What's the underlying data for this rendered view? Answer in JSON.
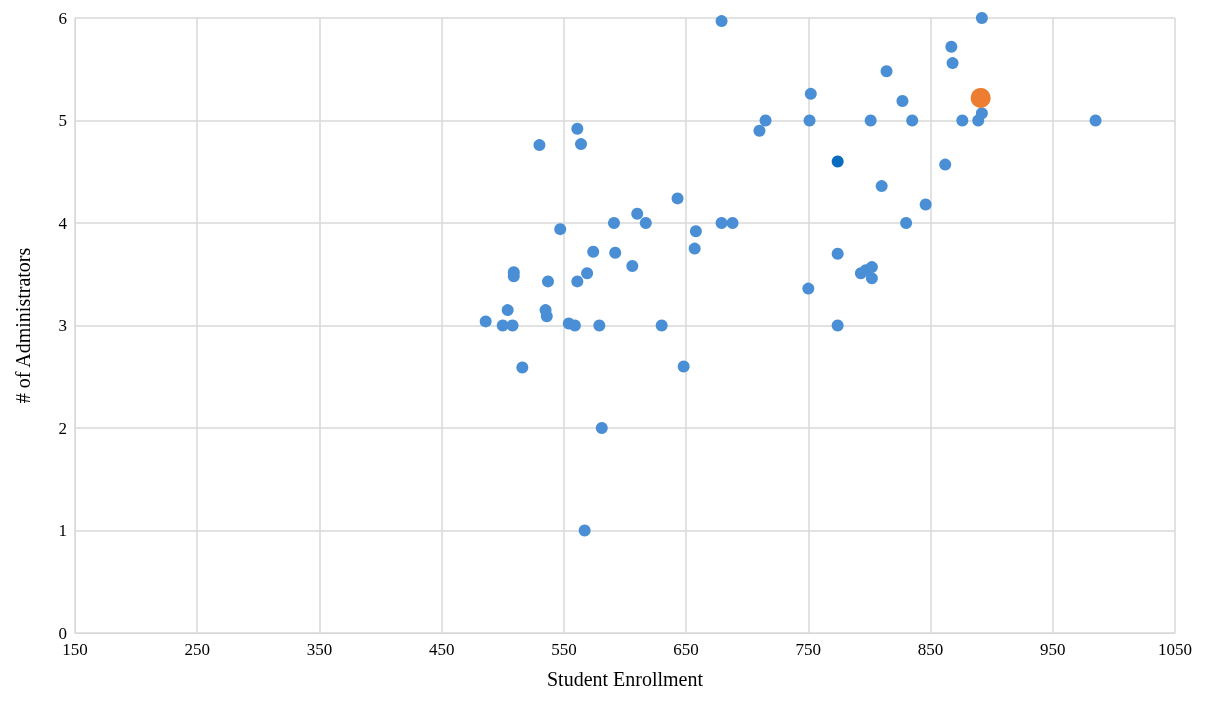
{
  "chart_data": {
    "type": "scatter",
    "xlabel": "Student Enrollment",
    "ylabel": "# of Administrators",
    "xlim": [
      150,
      1050
    ],
    "xticks": [
      150,
      250,
      350,
      450,
      550,
      650,
      750,
      850,
      950,
      1050
    ],
    "ylim": [
      0,
      6
    ],
    "yticks": [
      0,
      1,
      2,
      3,
      4,
      5,
      6
    ],
    "grid": true,
    "marker": "circle",
    "series": [
      {
        "color": "#4a8fd5",
        "x": [
          679,
          892,
          867,
          868,
          814,
          752,
          827,
          892,
          561,
          564,
          530,
          715,
          710,
          751,
          801,
          835,
          876,
          889,
          985,
          862,
          810,
          846,
          643,
          610,
          591,
          617,
          679,
          688,
          830,
          658,
          547,
          574,
          592,
          657,
          774,
          509,
          509,
          606,
          569,
          537,
          561,
          793,
          797,
          802,
          802,
          750,
          504,
          535,
          536,
          486,
          500,
          508,
          554,
          559,
          579,
          630,
          774,
          516,
          648,
          581,
          567
        ],
        "values": [
          5.97,
          6.0,
          5.72,
          5.56,
          5.48,
          5.26,
          5.19,
          5.07,
          4.92,
          4.77,
          4.76,
          5.0,
          4.9,
          5.0,
          5.0,
          5.0,
          5.0,
          5.0,
          5.0,
          4.57,
          4.36,
          4.18,
          4.24,
          4.09,
          4.0,
          4.0,
          4.0,
          4.0,
          4.0,
          3.92,
          3.94,
          3.72,
          3.71,
          3.75,
          3.7,
          3.52,
          3.48,
          3.58,
          3.51,
          3.43,
          3.43,
          3.51,
          3.54,
          3.57,
          3.46,
          3.36,
          3.15,
          3.15,
          3.09,
          3.04,
          3.0,
          3.0,
          3.02,
          3.0,
          3.0,
          3.0,
          3.0,
          2.59,
          2.6,
          2.0,
          1.0
        ]
      },
      {
        "color": "#0a6cbf",
        "x": [
          774
        ],
        "values": [
          4.6
        ]
      },
      {
        "color": "#ed7d31",
        "x": [
          891
        ],
        "values": [
          5.22
        ],
        "sizes": [
          1
        ]
      }
    ]
  }
}
